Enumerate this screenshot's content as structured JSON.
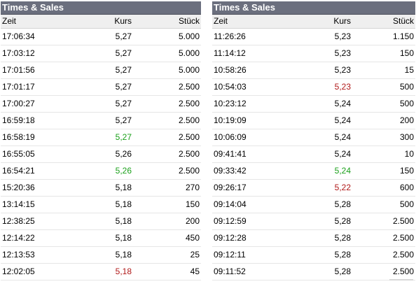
{
  "left": {
    "title": "Times & Sales",
    "headers": {
      "time": "Zeit",
      "price": "Kurs",
      "qty": "Stück"
    },
    "rows": [
      {
        "time": "17:06:34",
        "price": "5,27",
        "qty": "5.000",
        "dir": ""
      },
      {
        "time": "17:03:12",
        "price": "5,27",
        "qty": "5.000",
        "dir": ""
      },
      {
        "time": "17:01:56",
        "price": "5,27",
        "qty": "5.000",
        "dir": ""
      },
      {
        "time": "17:01:17",
        "price": "5,27",
        "qty": "2.500",
        "dir": ""
      },
      {
        "time": "17:00:27",
        "price": "5,27",
        "qty": "2.500",
        "dir": ""
      },
      {
        "time": "16:59:18",
        "price": "5,27",
        "qty": "2.500",
        "dir": ""
      },
      {
        "time": "16:58:19",
        "price": "5,27",
        "qty": "2.500",
        "dir": "up"
      },
      {
        "time": "16:55:05",
        "price": "5,26",
        "qty": "2.500",
        "dir": ""
      },
      {
        "time": "16:54:21",
        "price": "5,26",
        "qty": "2.500",
        "dir": "up"
      },
      {
        "time": "15:20:36",
        "price": "5,18",
        "qty": "270",
        "dir": ""
      },
      {
        "time": "13:14:15",
        "price": "5,18",
        "qty": "150",
        "dir": ""
      },
      {
        "time": "12:38:25",
        "price": "5,18",
        "qty": "200",
        "dir": ""
      },
      {
        "time": "12:14:22",
        "price": "5,18",
        "qty": "450",
        "dir": ""
      },
      {
        "time": "12:13:53",
        "price": "5,18",
        "qty": "25",
        "dir": ""
      },
      {
        "time": "12:02:05",
        "price": "5,18",
        "qty": "45",
        "dir": "down"
      }
    ]
  },
  "right": {
    "title": "Times & Sales",
    "headers": {
      "time": "Zeit",
      "price": "Kurs",
      "qty": "Stück"
    },
    "rows": [
      {
        "time": "11:26:26",
        "price": "5,23",
        "qty": "1.150",
        "dir": ""
      },
      {
        "time": "11:14:12",
        "price": "5,23",
        "qty": "150",
        "dir": ""
      },
      {
        "time": "10:58:26",
        "price": "5,23",
        "qty": "15",
        "dir": ""
      },
      {
        "time": "10:54:03",
        "price": "5,23",
        "qty": "500",
        "dir": "down"
      },
      {
        "time": "10:23:12",
        "price": "5,24",
        "qty": "500",
        "dir": ""
      },
      {
        "time": "10:19:09",
        "price": "5,24",
        "qty": "200",
        "dir": ""
      },
      {
        "time": "10:06:09",
        "price": "5,24",
        "qty": "300",
        "dir": ""
      },
      {
        "time": "09:41:41",
        "price": "5,24",
        "qty": "10",
        "dir": ""
      },
      {
        "time": "09:33:42",
        "price": "5,24",
        "qty": "150",
        "dir": "up"
      },
      {
        "time": "09:26:17",
        "price": "5,22",
        "qty": "600",
        "dir": "down"
      },
      {
        "time": "09:14:04",
        "price": "5,28",
        "qty": "500",
        "dir": ""
      },
      {
        "time": "09:12:59",
        "price": "5,28",
        "qty": "2.500",
        "dir": ""
      },
      {
        "time": "09:12:28",
        "price": "5,28",
        "qty": "2.500",
        "dir": ""
      },
      {
        "time": "09:12:11",
        "price": "5,28",
        "qty": "2.500",
        "dir": ""
      },
      {
        "time": "09:11:52",
        "price": "5,28",
        "qty": "2.500",
        "dir": ""
      }
    ]
  },
  "colors": {
    "up": "#1aa01a",
    "down": "#b01818",
    "title_bar": "#6b6f7e"
  }
}
